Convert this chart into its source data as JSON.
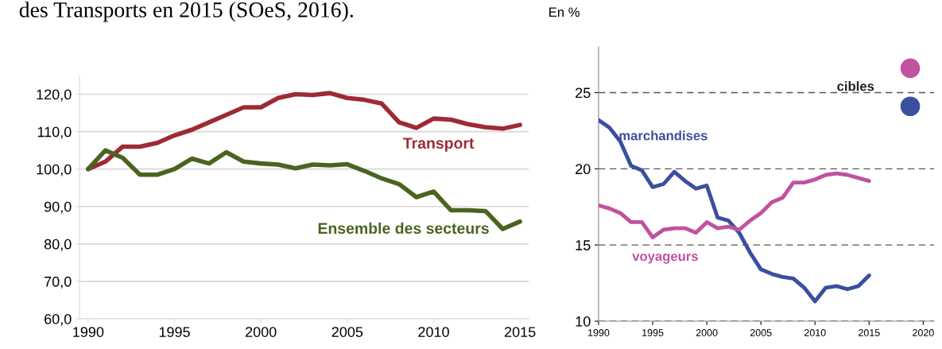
{
  "chart_data": [
    {
      "type": "line",
      "annotations": [
        "des Transports en 2015 (SOeS, 2016)."
      ],
      "x": [
        1990,
        1991,
        1992,
        1993,
        1994,
        1995,
        1996,
        1997,
        1998,
        1999,
        2000,
        2001,
        2002,
        2003,
        2004,
        2005,
        2006,
        2007,
        2008,
        2009,
        2010,
        2011,
        2012,
        2013,
        2014,
        2015
      ],
      "series": [
        {
          "name": "Transport",
          "color": "#9e2a35",
          "values": [
            100,
            102,
            106,
            106,
            107,
            109,
            110.5,
            112.5,
            114.5,
            116.5,
            116.5,
            119,
            120,
            119.8,
            120.3,
            119,
            118.5,
            117.5,
            112.5,
            111,
            113.5,
            113.2,
            112,
            111.2,
            110.8,
            111.8
          ]
        },
        {
          "name": "Ensemble des secteurs",
          "color": "#4a6420",
          "values": [
            100,
            105,
            103,
            98.5,
            98.5,
            100,
            102.8,
            101.5,
            104.5,
            102,
            101.5,
            101.2,
            100.2,
            101.2,
            101,
            101.3,
            99.5,
            97.5,
            96,
            92.5,
            94,
            89,
            89,
            88.8,
            84,
            86
          ]
        }
      ],
      "xlim": [
        1989.5,
        2015.5
      ],
      "xticks": [
        1990,
        1995,
        2000,
        2005,
        2010,
        2015
      ],
      "ylim": [
        60,
        125
      ],
      "yticks": [
        {
          "value": 60,
          "label": "60,0"
        },
        {
          "value": 70,
          "label": "70,0"
        },
        {
          "value": 80,
          "label": "80,0"
        },
        {
          "value": 90,
          "label": "90,0"
        },
        {
          "value": 100,
          "label": "100,0"
        },
        {
          "value": 110,
          "label": "110,0"
        },
        {
          "value": 120,
          "label": "120,0"
        }
      ],
      "grid": "y",
      "legend": false
    },
    {
      "type": "line",
      "ylabel": "En %",
      "annotations": [
        "cibles"
      ],
      "x": [
        1990,
        1991,
        1992,
        1993,
        1994,
        1995,
        1996,
        1997,
        1998,
        1999,
        2000,
        2001,
        2002,
        2003,
        2004,
        2005,
        2006,
        2007,
        2008,
        2009,
        2010,
        2011,
        2012,
        2013,
        2014,
        2015
      ],
      "series": [
        {
          "name": "marchandises",
          "color": "#3a4fa0",
          "values": [
            23.2,
            22.7,
            21.8,
            20.2,
            19.9,
            18.8,
            19.0,
            19.8,
            19.2,
            18.7,
            18.9,
            16.8,
            16.6,
            15.8,
            14.5,
            13.4,
            13.1,
            12.9,
            12.8,
            12.2,
            11.3,
            12.2,
            12.3,
            12.1,
            12.3,
            13.0
          ]
        },
        {
          "name": "voyageurs",
          "color": "#c052a0",
          "values": [
            17.6,
            17.4,
            17.1,
            16.5,
            16.5,
            15.5,
            16.0,
            16.1,
            16.1,
            15.8,
            16.5,
            16.1,
            16.2,
            16.0,
            16.6,
            17.1,
            17.8,
            18.1,
            19.1,
            19.1,
            19.3,
            19.6,
            19.7,
            19.6,
            19.4,
            19.2
          ]
        },
        {
          "type": "scatter",
          "x": [
            2018.8
          ],
          "color": "#c052a0",
          "values": [
            26.6
          ]
        },
        {
          "type": "scatter",
          "x": [
            2018.8
          ],
          "color": "#3a4fa0",
          "values": [
            24.1
          ]
        }
      ],
      "xlim": [
        1990,
        2021
      ],
      "xticks": [
        1990,
        1995,
        2000,
        2005,
        2010,
        2015,
        2020
      ],
      "ylim": [
        10,
        28
      ],
      "yticks": [
        10,
        15,
        20,
        25
      ],
      "grid": "y",
      "legend": false
    }
  ]
}
